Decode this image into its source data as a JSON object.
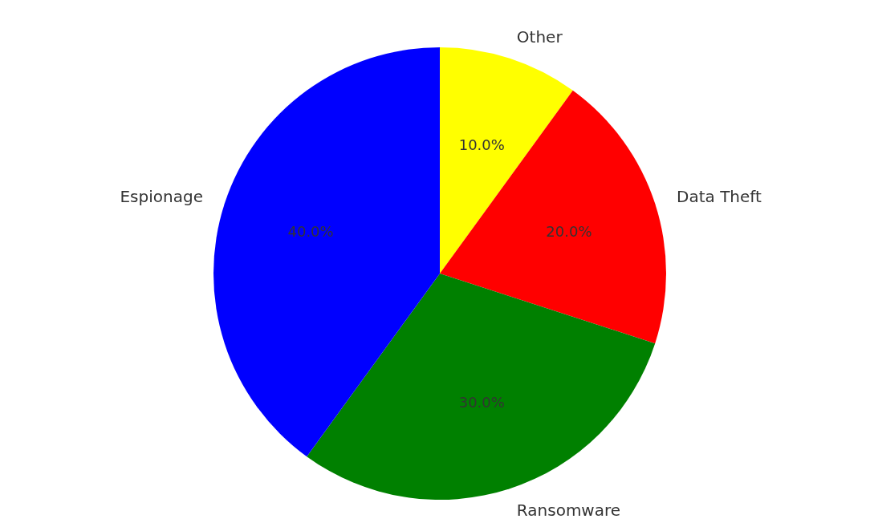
{
  "chart_data": {
    "type": "pie",
    "categories": [
      "Other",
      "Data Theft",
      "Ransomware",
      "Espionage"
    ],
    "values": [
      10,
      20,
      30,
      40
    ],
    "colors": [
      "#ffff00",
      "#ff0000",
      "#008000",
      "#0000ff"
    ],
    "value_labels": [
      "10.0%",
      "20.0%",
      "30.0%",
      "40.0%"
    ]
  }
}
